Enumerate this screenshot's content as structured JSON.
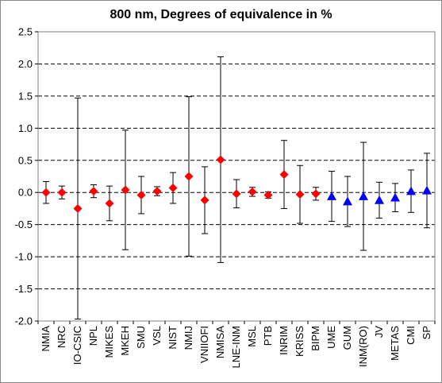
{
  "chart_data": {
    "type": "scatter",
    "title": "800 nm, Degrees of equivalence in %",
    "xlabel": "",
    "ylabel": "",
    "ylim": [
      -2.0,
      2.5
    ],
    "yticks": [
      "2.5",
      "2.0",
      "1.5",
      "1.0",
      "0.5",
      "0.0",
      "-0.5",
      "-1.0",
      "-1.5",
      "-2.0"
    ],
    "grid": "horizontal dashed",
    "legend": "none",
    "categories": [
      "NMIA",
      "NRC",
      "IO-CSIC",
      "NPL",
      "MIKES",
      "MKEH",
      "SMU",
      "VSL",
      "NIST",
      "NMIJ",
      "VNIIOFI",
      "NMISA",
      "LNE-INM",
      "MSL",
      "PTB",
      "INRIM",
      "KRISS",
      "BIPM",
      "UME",
      "GUM",
      "INM(RO)",
      "JV",
      "METAS",
      "CMI",
      "SP"
    ],
    "series": [
      {
        "marker": "diamond",
        "color": "#ff0000",
        "points": [
          {
            "x": "NMIA",
            "y": 0.0,
            "err": 0.17
          },
          {
            "x": "NRC",
            "y": 0.0,
            "err": 0.1
          },
          {
            "x": "IO-CSIC",
            "y": -0.25,
            "err": 1.72
          },
          {
            "x": "NPL",
            "y": 0.02,
            "err": 0.1
          },
          {
            "x": "MIKES",
            "y": -0.17,
            "err": 0.27
          },
          {
            "x": "MKEH",
            "y": 0.04,
            "err": 0.93
          },
          {
            "x": "SMU",
            "y": -0.04,
            "err": 0.29
          },
          {
            "x": "VSL",
            "y": 0.02,
            "err": 0.07
          },
          {
            "x": "NIST",
            "y": 0.07,
            "err": 0.24
          },
          {
            "x": "NMIJ",
            "y": 0.25,
            "err": 1.24
          },
          {
            "x": "VNIIOFI",
            "y": -0.12,
            "err": 0.52
          },
          {
            "x": "NMISA",
            "y": 0.51,
            "err": 1.6
          },
          {
            "x": "LNE-INM",
            "y": -0.02,
            "err": 0.22
          },
          {
            "x": "MSL",
            "y": 0.01,
            "err": 0.07
          },
          {
            "x": "PTB",
            "y": -0.04,
            "err": 0.05
          },
          {
            "x": "INRIM",
            "y": 0.28,
            "err": 0.53
          },
          {
            "x": "KRISS",
            "y": -0.03,
            "err": 0.45
          },
          {
            "x": "BIPM",
            "y": -0.02,
            "err": 0.1
          }
        ]
      },
      {
        "marker": "triangle",
        "color": "#0000ff",
        "points": [
          {
            "x": "UME",
            "y": -0.06,
            "err": 0.39
          },
          {
            "x": "GUM",
            "y": -0.14,
            "err": 0.39
          },
          {
            "x": "INM(RO)",
            "y": -0.06,
            "err": 0.84
          },
          {
            "x": "JV",
            "y": -0.12,
            "err": 0.28
          },
          {
            "x": "METAS",
            "y": -0.08,
            "err": 0.22
          },
          {
            "x": "CMI",
            "y": 0.02,
            "err": 0.33
          },
          {
            "x": "SP",
            "y": 0.03,
            "err": 0.58
          }
        ]
      }
    ]
  }
}
